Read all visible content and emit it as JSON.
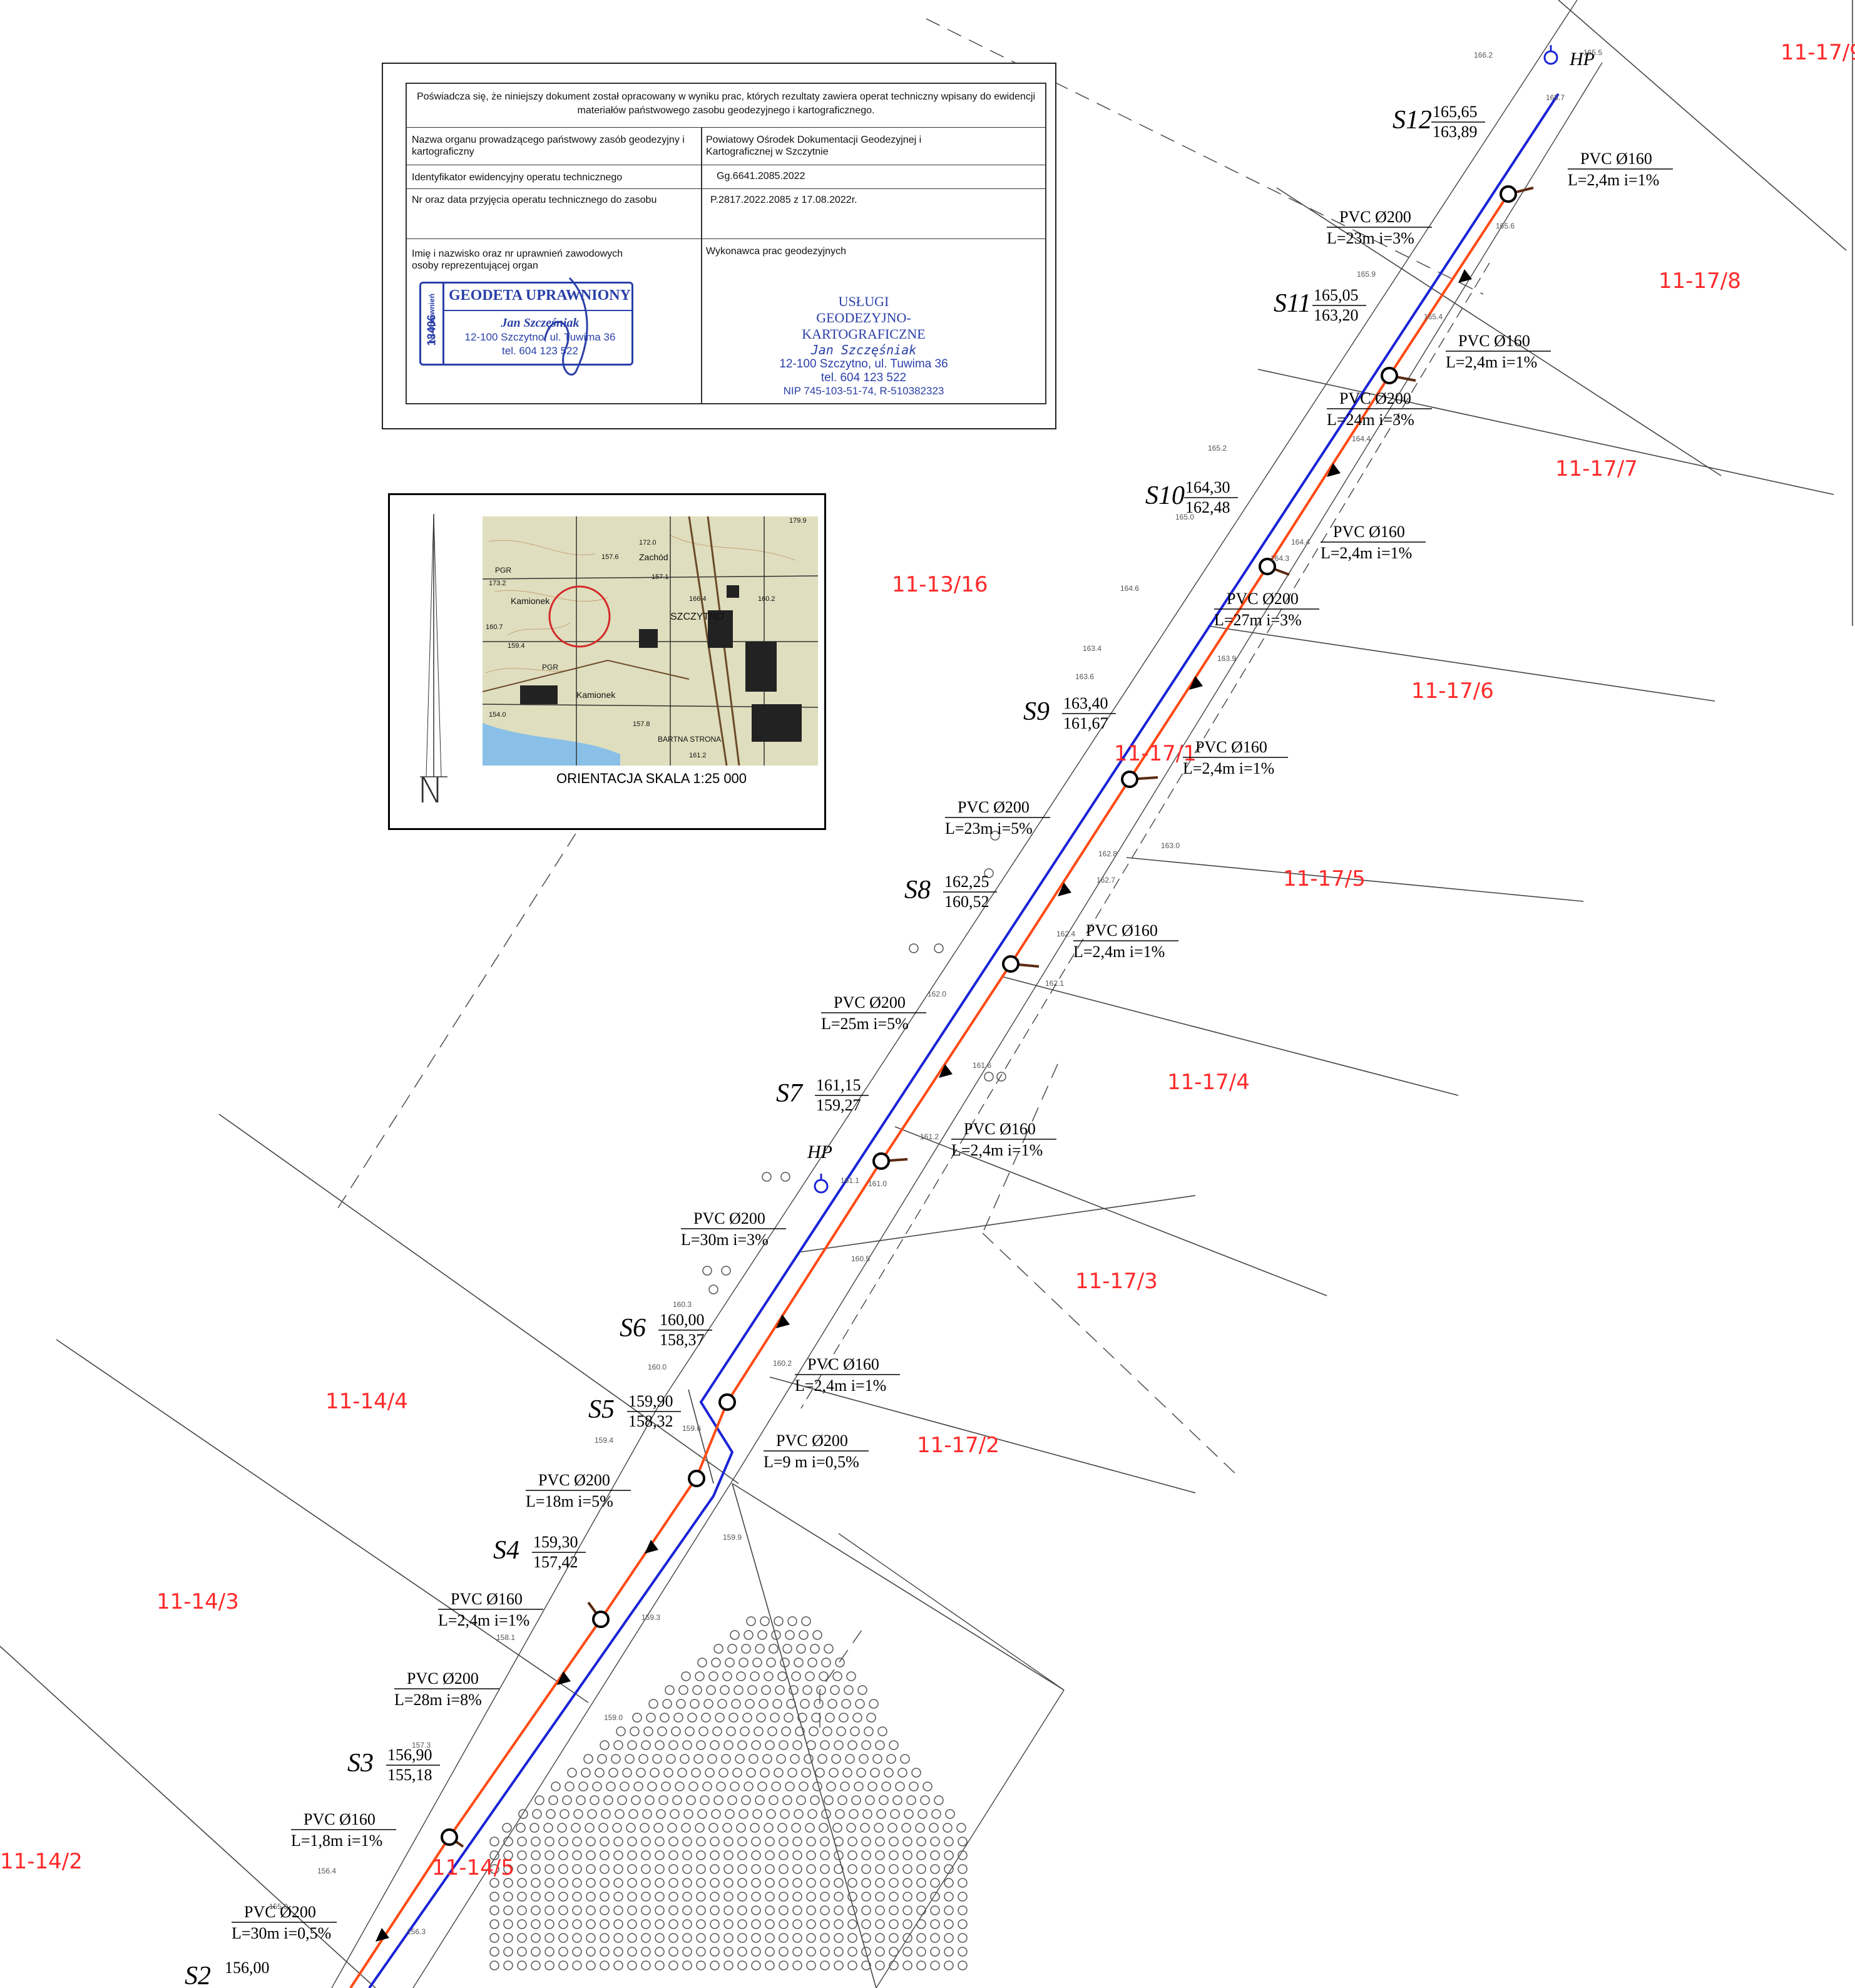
{
  "certificate": {
    "header": "Poświadcza się, że niniejszy dokument został opracowany w wyniku prac, których rezultaty zawiera operat techniczny wpisany do ewidencji materiałów państwowego zasobu geodezyjnego i kartograficznego.",
    "rows": [
      {
        "label": "Nazwa organu prowadzącego państwowy zasób geodezyjny i kartograficzny",
        "value": "Powiatowy Ośrodek Dokumentacji Geodezyjnej i Kartograficznej w Szczytnie"
      },
      {
        "label": "Identyfikator ewidencyjny operatu technicznego",
        "value": "Gg.6641.2085.2022"
      },
      {
        "label": "Nr oraz data przyjęcia operatu technicznego do zasobu",
        "value": "P.2817.2022.2085 z 17.08.2022r."
      },
      {
        "label": "Imię i nazwisko oraz nr uprawnień zawodowych osoby reprezentującej organ",
        "value": "Wykonawca prac geodezyjnych"
      }
    ],
    "stamp_surveyor": {
      "license_label": "Nr Uprawnień",
      "license_number": "13406",
      "title": "GEODETA UPRAWNIONY",
      "name": "Jan Szczęśniak",
      "address": "12-100 Szczytno, ul. Tuwima 36",
      "phone": "tel. 604 123 522"
    },
    "stamp_company": {
      "line1": "USŁUGI",
      "line2": "GEODEZYJNO-KARTOGRAFICZNE",
      "name": "Jan Szczęśniak",
      "address": "12-100 Szczytno, ul. Tuwima 36",
      "phone": "tel. 604 123 522",
      "ids": "NIP 745-103-51-74, R-510382323"
    }
  },
  "inset": {
    "scale_label": "ORIENTACJA SKALA 1:25 000",
    "north_letter": "N",
    "place_names": [
      "Zachód",
      "Kamionek",
      "SZCZYTNO",
      "Kamionek",
      "BARTNA STRONA",
      "PGR",
      "PGR"
    ],
    "elevations": [
      "157.6",
      "172.0",
      "157.1",
      "166.4",
      "160.2",
      "160.7",
      "159.4",
      "154.0",
      "157.8",
      "161.2",
      "173.2",
      "179.9"
    ]
  },
  "parcels": [
    "11-17/9",
    "11-17/8",
    "11-17/7",
    "11-17/6",
    "11-13/16",
    "11-17/1",
    "11-17/5",
    "11-17/4",
    "11-17/3",
    "11-17/2",
    "11-14/4",
    "11-14/3",
    "11-14/2",
    "11-14/5"
  ],
  "wells": [
    {
      "name": "S12",
      "top": "165,65",
      "bottom": "163,89"
    },
    {
      "name": "S11",
      "top": "165,05",
      "bottom": "163,20"
    },
    {
      "name": "S10",
      "top": "164,30",
      "bottom": "162,48"
    },
    {
      "name": "S9",
      "top": "163,40",
      "bottom": "161,67"
    },
    {
      "name": "S8",
      "top": "162,25",
      "bottom": "160,52"
    },
    {
      "name": "S7",
      "top": "161,15",
      "bottom": "159,27"
    },
    {
      "name": "S6",
      "top": "160,00",
      "bottom": "158,37"
    },
    {
      "name": "S5",
      "top": "159,90",
      "bottom": "158,32"
    },
    {
      "name": "S4",
      "top": "159,30",
      "bottom": "157,42"
    },
    {
      "name": "S3",
      "top": "156,90",
      "bottom": "155,18"
    },
    {
      "name": "S2",
      "top": "156,00",
      "bottom": ""
    }
  ],
  "pipe_labels": [
    {
      "type": "PVC Ø160",
      "spec": "L=2,4m i=1%"
    },
    {
      "type": "PVC Ø200",
      "spec": "L=23m i=3%"
    },
    {
      "type": "PVC Ø160",
      "spec": "L=2,4m i=1%"
    },
    {
      "type": "PVC Ø200",
      "spec": "L=24m i=3%"
    },
    {
      "type": "PVC Ø160",
      "spec": "L=2,4m i=1%"
    },
    {
      "type": "PVC Ø200",
      "spec": "L=27m i=3%"
    },
    {
      "type": "PVC Ø160",
      "spec": "L=2,4m i=1%"
    },
    {
      "type": "PVC Ø200",
      "spec": "L=23m i=5%"
    },
    {
      "type": "PVC Ø160",
      "spec": "L=2,4m i=1%"
    },
    {
      "type": "PVC Ø200",
      "spec": "L=25m i=5%"
    },
    {
      "type": "PVC Ø160",
      "spec": "L=2,4m i=1%"
    },
    {
      "type": "PVC Ø200",
      "spec": "L=30m i=3%"
    },
    {
      "type": "PVC Ø160",
      "spec": "L=2,4m i=1%"
    },
    {
      "type": "PVC Ø200",
      "spec": "L=9 m i=0,5%"
    },
    {
      "type": "PVC Ø200",
      "spec": "L=18m i=5%"
    },
    {
      "type": "PVC Ø160",
      "spec": "L=2,4m i=1%"
    },
    {
      "type": "PVC Ø200",
      "spec": "L=28m i=8%"
    },
    {
      "type": "PVC Ø160",
      "spec": "L=1,8m i=1%"
    },
    {
      "type": "PVC Ø200",
      "spec": "L=30m i=0,5%"
    }
  ],
  "hydrant_label": "HP",
  "elevations": [
    "166.2",
    "165.5",
    "165.7",
    "165.6",
    "165.9",
    "165.4",
    "165.2",
    "164.4",
    "165.0",
    "164.3",
    "164.6",
    "164.4",
    "163.9",
    "163.4",
    "163.6",
    "163.0",
    "162.8",
    "162.7",
    "162.4",
    "162.1",
    "162.0",
    "161.6",
    "161.2",
    "161.1",
    "161.0",
    "160.5",
    "160.3",
    "160.0",
    "160.2",
    "159.6",
    "159.4",
    "159.9",
    "159.3",
    "158.1",
    "159.0",
    "157.3",
    "155.9",
    "156.4",
    "156.3"
  ],
  "colors": {
    "sewer_line": "#ff4a14",
    "water_line": "#1a24d6",
    "parcel_label": "#ff2a2a",
    "stamp_ink": "#2a3fa8"
  }
}
